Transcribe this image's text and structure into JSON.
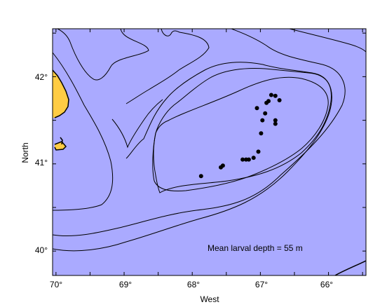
{
  "map": {
    "xlabel": "West",
    "ylabel": "North",
    "annotation": "Mean larval depth = 55 m",
    "x_ticks": [
      "70°",
      "69°",
      "68°",
      "67°",
      "66°"
    ],
    "y_ticks": [
      "42°",
      "41°",
      "40°"
    ],
    "colors": {
      "ocean": "#aaaaff",
      "land": "#ffcc44",
      "contour": "#000000",
      "points": "#000000"
    }
  },
  "chart_data": {
    "type": "scatter",
    "xlabel": "West",
    "ylabel": "North",
    "xlim": [
      70.05,
      65.45
    ],
    "ylim": [
      39.72,
      42.55
    ],
    "x_ticks": [
      70,
      69,
      68,
      67,
      66
    ],
    "y_ticks": [
      42,
      41,
      40
    ],
    "annotation": "Mean larval depth = 55 m",
    "series": [
      {
        "points": [
          {
            "lon": 67.87,
            "lat": 40.86
          },
          {
            "lon": 67.58,
            "lat": 40.96
          },
          {
            "lon": 67.55,
            "lat": 40.98
          },
          {
            "lon": 67.26,
            "lat": 41.05
          },
          {
            "lon": 67.21,
            "lat": 41.05
          },
          {
            "lon": 67.17,
            "lat": 41.05
          },
          {
            "lon": 67.1,
            "lat": 41.07
          },
          {
            "lon": 67.03,
            "lat": 41.14
          },
          {
            "lon": 66.99,
            "lat": 41.35
          },
          {
            "lon": 66.97,
            "lat": 41.5
          },
          {
            "lon": 66.93,
            "lat": 41.58
          },
          {
            "lon": 67.05,
            "lat": 41.64
          },
          {
            "lon": 66.91,
            "lat": 41.7
          },
          {
            "lon": 66.88,
            "lat": 41.72
          },
          {
            "lon": 66.84,
            "lat": 41.79
          },
          {
            "lon": 66.78,
            "lat": 41.78
          },
          {
            "lon": 66.72,
            "lat": 41.73
          },
          {
            "lon": 66.78,
            "lat": 41.5
          },
          {
            "lon": 66.78,
            "lat": 41.46
          }
        ]
      }
    ]
  }
}
